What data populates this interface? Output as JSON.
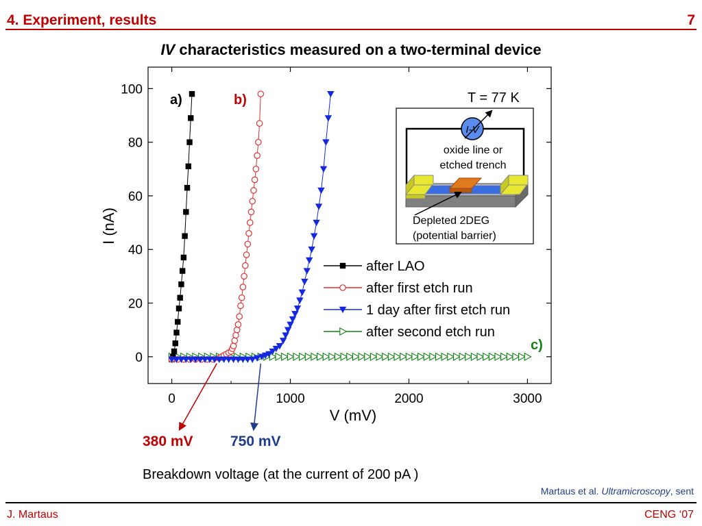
{
  "slide": {
    "section_title": "4. Experiment, results",
    "page_number": "7",
    "title_italic": "IV",
    "title_rest": " characteristics measured on a two-terminal device",
    "caption": "Breakdown voltage (at the current of 200 pA )",
    "citation_authors": "Martaus et al. ",
    "citation_journal": "Ultramicroscopy",
    "citation_status": ", sent",
    "footer_author": "J. Martaus",
    "footer_conference": "CENG ‘07"
  },
  "chart_data": {
    "type": "scatter",
    "xlabel": "V (mV)",
    "ylabel": "I (nA)",
    "xlim": [
      -200,
      3200
    ],
    "ylim": [
      -10,
      108
    ],
    "xticks": [
      0,
      1000,
      2000,
      3000
    ],
    "yticks": [
      0,
      20,
      40,
      60,
      80,
      100
    ],
    "xtick_labels": [
      "0",
      "1000",
      "2000",
      "3000"
    ],
    "ytick_labels": [
      "0",
      "20",
      "40",
      "60",
      "80",
      "100"
    ],
    "temperature_label": "T = 77 K",
    "legend_position": "center-right",
    "series": [
      {
        "name": "after LAO",
        "marker": "square-filled",
        "color": "#000000",
        "x": [
          0,
          10,
          20,
          30,
          40,
          50,
          60,
          70,
          80,
          90,
          100,
          110,
          120,
          130,
          140,
          150,
          160,
          170
        ],
        "y": [
          -1,
          0,
          2,
          5,
          9,
          13,
          18,
          22,
          27,
          32,
          37,
          45,
          54,
          63,
          71,
          80,
          89,
          98
        ]
      },
      {
        "name": "after first etch run",
        "marker": "circle-open",
        "color": "#e03030",
        "x": [
          0,
          50,
          100,
          150,
          200,
          250,
          300,
          350,
          400,
          420,
          440,
          460,
          480,
          500,
          510,
          520,
          530,
          540,
          550,
          560,
          570,
          580,
          590,
          600,
          610,
          620,
          630,
          640,
          650,
          660,
          670,
          680,
          690,
          700,
          710,
          720,
          730,
          740,
          750
        ],
        "y": [
          -1,
          -1,
          -1,
          -1,
          -1,
          -1,
          -1,
          -1,
          -0.5,
          0,
          0.5,
          1,
          1.5,
          2,
          3,
          4,
          6,
          8,
          10,
          12,
          15,
          19,
          22,
          26,
          30,
          34,
          38,
          42,
          46,
          50,
          54,
          58,
          62,
          66,
          70,
          75,
          80,
          87,
          98
        ]
      },
      {
        "name": "1 day after first etch run",
        "marker": "triangle-down-filled",
        "color": "#1428e0",
        "x": [
          0,
          40,
          80,
          120,
          160,
          200,
          240,
          280,
          320,
          360,
          400,
          440,
          480,
          520,
          560,
          600,
          640,
          680,
          720,
          760,
          790,
          820,
          850,
          880,
          910,
          940,
          960,
          980,
          1000,
          1020,
          1040,
          1060,
          1080,
          1100,
          1120,
          1140,
          1160,
          1180,
          1200,
          1220,
          1240,
          1260,
          1280,
          1300,
          1320,
          1340
        ],
        "y": [
          -1,
          -1,
          -1,
          -1,
          -1,
          -1,
          -1,
          -1,
          -1,
          -1,
          -1,
          -1,
          -1,
          -1,
          -1,
          -1,
          -1,
          -1,
          -0.5,
          0,
          0.5,
          1,
          2,
          3,
          4,
          6,
          8,
          10,
          12,
          14,
          16,
          18,
          21,
          24,
          28,
          32,
          36,
          40,
          45,
          50,
          56,
          62,
          70,
          80,
          89,
          98
        ]
      },
      {
        "name": "after second etch run",
        "marker": "triangle-right-open",
        "color": "#108010",
        "x": [
          0,
          50,
          100,
          150,
          200,
          250,
          300,
          350,
          400,
          450,
          500,
          550,
          600,
          650,
          700,
          750,
          800,
          850,
          900,
          950,
          1000,
          1050,
          1100,
          1150,
          1200,
          1250,
          1300,
          1350,
          1400,
          1450,
          1500,
          1550,
          1600,
          1650,
          1700,
          1750,
          1800,
          1850,
          1900,
          1950,
          2000,
          2050,
          2100,
          2150,
          2200,
          2250,
          2300,
          2350,
          2400,
          2450,
          2500,
          2550,
          2600,
          2650,
          2700,
          2750,
          2800,
          2850,
          2900,
          2950,
          3000
        ],
        "y": [
          0,
          0,
          0,
          0,
          0,
          0,
          0,
          0,
          0,
          0,
          0,
          0,
          0,
          0,
          0,
          0,
          0,
          0,
          0,
          0,
          0,
          0,
          0,
          0,
          0,
          0,
          0,
          0,
          0,
          0,
          0,
          0,
          0,
          0,
          0,
          0,
          0,
          0,
          0,
          0,
          0,
          0,
          0,
          0,
          0,
          0,
          0,
          0,
          0,
          0,
          0,
          0,
          0,
          0,
          0,
          0,
          0,
          0,
          0,
          0,
          0
        ]
      }
    ],
    "curve_labels": [
      {
        "text": "a)",
        "color": "#000000"
      },
      {
        "text": "b)",
        "color": "#c00000"
      },
      {
        "text": "c)",
        "color": "#108010"
      }
    ],
    "breakdown_voltages": [
      {
        "value": 380,
        "label": "380 mV",
        "color": "#c00000"
      },
      {
        "value": 750,
        "label": "750 mV",
        "color": "#1f3c8c"
      }
    ],
    "inset": {
      "meter_label": "I-V",
      "trench_label_line1": "oxide line or",
      "trench_label_line2": "etched trench",
      "barrier_label_line1": "Depleted 2DEG",
      "barrier_label_line2": "(potential barrier)"
    }
  }
}
